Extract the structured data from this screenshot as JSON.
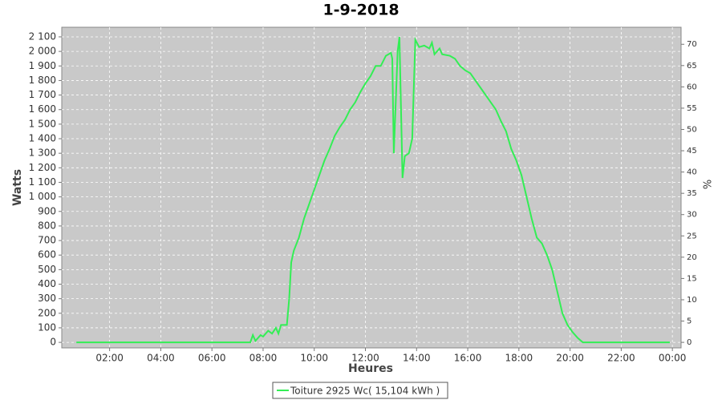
{
  "chart_data": {
    "type": "line",
    "title": "1-9-2018",
    "x_label": "Heures",
    "y_label": "Watts",
    "y2_label": "%",
    "x": [
      0.7,
      2,
      4,
      6,
      7.5,
      7.6,
      7.7,
      7.9,
      8.0,
      8.2,
      8.35,
      8.5,
      8.6,
      8.7,
      8.93,
      9.02,
      9.1,
      9.2,
      9.4,
      9.6,
      9.8,
      10.0,
      10.2,
      10.4,
      10.6,
      10.8,
      11.0,
      11.2,
      11.4,
      11.6,
      11.8,
      12.0,
      12.2,
      12.4,
      12.6,
      12.8,
      13.0,
      13.05,
      13.11,
      13.26,
      13.33,
      13.45,
      13.54,
      13.7,
      13.83,
      13.95,
      14.1,
      14.3,
      14.5,
      14.6,
      14.7,
      14.9,
      15.0,
      15.3,
      15.5,
      15.7,
      15.9,
      16.1,
      16.3,
      16.5,
      16.7,
      16.9,
      17.1,
      17.3,
      17.5,
      17.7,
      17.9,
      18.1,
      18.3,
      18.5,
      18.7,
      18.9,
      19.1,
      19.3,
      19.5,
      19.7,
      19.9,
      20.1,
      20.3,
      20.5,
      22,
      23.9
    ],
    "series": [
      {
        "name": "Toiture 2925 Wc( 15,104 kWh )",
        "color": "#33ee55",
        "values": [
          0,
          0,
          0,
          0,
          0,
          50,
          10,
          50,
          40,
          80,
          60,
          100,
          60,
          120,
          120,
          300,
          550,
          630,
          720,
          850,
          950,
          1050,
          1150,
          1250,
          1330,
          1420,
          1480,
          1530,
          1600,
          1650,
          1720,
          1780,
          1830,
          1900,
          1900,
          1970,
          1990,
          1950,
          1300,
          2000,
          2100,
          1130,
          1280,
          1300,
          1400,
          2080,
          2030,
          2040,
          2020,
          2060,
          1980,
          2020,
          1980,
          1970,
          1950,
          1900,
          1870,
          1850,
          1800,
          1750,
          1700,
          1650,
          1600,
          1520,
          1450,
          1330,
          1250,
          1150,
          1000,
          850,
          720,
          680,
          600,
          500,
          350,
          200,
          120,
          70,
          30,
          0,
          0,
          0
        ]
      }
    ],
    "xlim": [
      0.13,
      24.34
    ],
    "xticks": [
      {
        "value": 2,
        "label": "02:00"
      },
      {
        "value": 4,
        "label": "04:00"
      },
      {
        "value": 6,
        "label": "06:00"
      },
      {
        "value": 8,
        "label": "08:00"
      },
      {
        "value": 10,
        "label": "10:00"
      },
      {
        "value": 12,
        "label": "12:00"
      },
      {
        "value": 14,
        "label": "14:00"
      },
      {
        "value": 16,
        "label": "16:00"
      },
      {
        "value": 18,
        "label": "18:00"
      },
      {
        "value": 20,
        "label": "20:00"
      },
      {
        "value": 22,
        "label": "22:00"
      },
      {
        "value": 24,
        "label": "00:00"
      }
    ],
    "ylim": [
      -38,
      2166
    ],
    "yticks": [
      0,
      100,
      200,
      300,
      400,
      500,
      600,
      700,
      800,
      900,
      {
        "value": 1000,
        "label": "1 000"
      },
      {
        "value": 1100,
        "label": "1 100"
      },
      {
        "value": 1200,
        "label": "1 200"
      },
      {
        "value": 1300,
        "label": "1 300"
      },
      {
        "value": 1400,
        "label": "1 400"
      },
      {
        "value": 1500,
        "label": "1 500"
      },
      {
        "value": 1600,
        "label": "1 600"
      },
      {
        "value": 1700,
        "label": "1 700"
      },
      {
        "value": 1800,
        "label": "1 800"
      },
      {
        "value": 1900,
        "label": "1 900"
      },
      {
        "value": 2000,
        "label": "2 000"
      },
      {
        "value": 2100,
        "label": "2 100"
      }
    ],
    "y2lim": [
      -1.3,
      74
    ],
    "y2ticks": [
      0,
      5,
      10,
      15,
      20,
      25,
      30,
      35,
      40,
      45,
      50,
      55,
      60,
      65,
      70
    ],
    "grid": true
  }
}
